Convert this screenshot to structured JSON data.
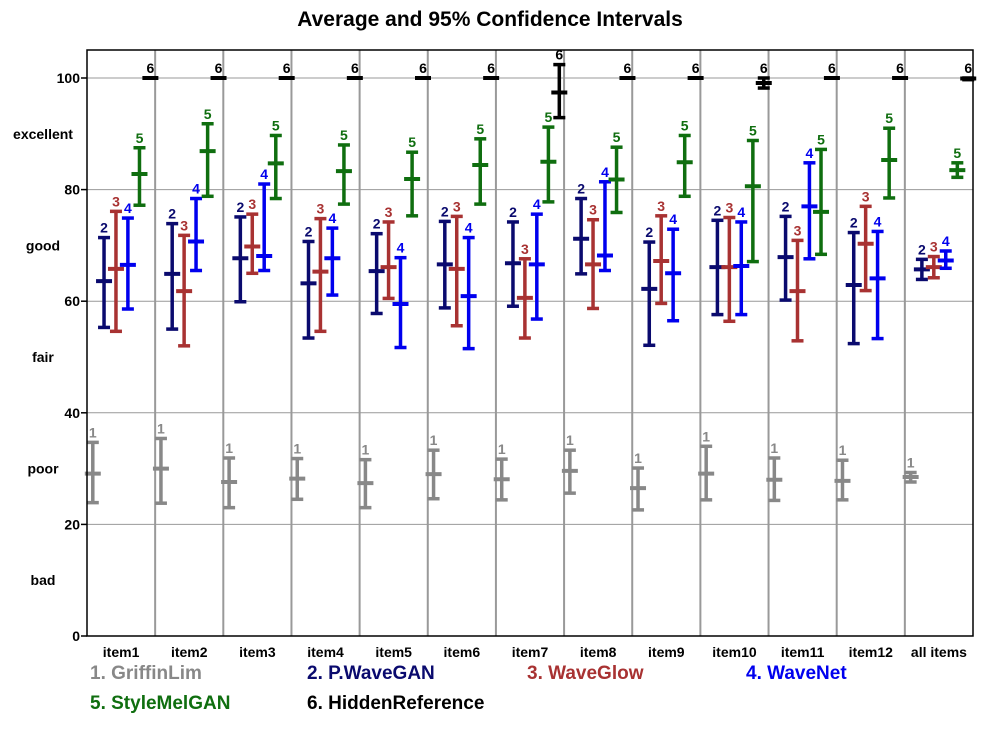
{
  "chart_data": {
    "type": "errorbar",
    "title": "Average and 95% Confidence Intervals",
    "xlabel": "",
    "ylabel": "",
    "ylim": [
      0,
      100
    ],
    "yticks": [
      0,
      20,
      40,
      60,
      80,
      100
    ],
    "quality_labels": [
      {
        "text": "excellent",
        "y": 90
      },
      {
        "text": "good",
        "y": 70
      },
      {
        "text": "fair",
        "y": 50
      },
      {
        "text": "poor",
        "y": 30
      },
      {
        "text": "bad",
        "y": 10
      }
    ],
    "categories": [
      "item1",
      "item2",
      "item3",
      "item4",
      "item5",
      "item6",
      "item7",
      "item8",
      "item9",
      "item10",
      "item11",
      "item12",
      "all items"
    ],
    "grid": true,
    "series": [
      {
        "id": "1",
        "name": "1. GriffinLim",
        "color": "#888888",
        "mean": [
          29.1,
          30.0,
          27.6,
          28.2,
          27.4,
          29.0,
          28.1,
          29.6,
          26.5,
          29.1,
          28.0,
          27.8,
          28.5
        ],
        "lower": [
          23.9,
          23.8,
          23.0,
          24.5,
          23.0,
          24.6,
          24.4,
          25.6,
          22.6,
          24.4,
          24.3,
          24.4,
          27.6
        ],
        "upper": [
          34.7,
          35.4,
          31.9,
          31.8,
          31.6,
          33.3,
          31.7,
          33.3,
          30.1,
          34.0,
          31.9,
          31.5,
          29.3
        ]
      },
      {
        "id": "2",
        "name": "2. P.WaveGAN",
        "color": "#0a0a6e",
        "mean": [
          63.6,
          64.9,
          67.7,
          63.2,
          65.4,
          66.6,
          66.8,
          71.2,
          62.2,
          66.1,
          67.9,
          62.9,
          65.7
        ],
        "lower": [
          55.3,
          55.0,
          59.9,
          53.4,
          57.8,
          58.8,
          59.1,
          64.9,
          52.1,
          57.6,
          60.2,
          52.4,
          63.9
        ],
        "upper": [
          71.4,
          73.9,
          75.1,
          70.7,
          72.1,
          74.3,
          74.2,
          78.4,
          70.6,
          74.5,
          75.2,
          72.3,
          67.5
        ]
      },
      {
        "id": "3",
        "name": "3. WaveGlow",
        "color": "#a83232",
        "mean": [
          65.8,
          61.8,
          69.8,
          65.3,
          66.1,
          65.8,
          60.6,
          66.6,
          67.2,
          66.1,
          61.8,
          70.3,
          66.1
        ],
        "lower": [
          54.6,
          52.0,
          65.0,
          54.6,
          60.5,
          55.6,
          53.4,
          58.7,
          59.6,
          56.4,
          52.9,
          61.9,
          64.2
        ],
        "upper": [
          76.1,
          71.8,
          75.6,
          74.8,
          74.2,
          75.2,
          67.6,
          74.6,
          75.3,
          75.0,
          70.9,
          77.0,
          68.0
        ]
      },
      {
        "id": "4",
        "name": "4. WaveNet",
        "color": "#0000ee",
        "mean": [
          66.5,
          70.7,
          68.1,
          67.7,
          59.5,
          60.9,
          66.6,
          68.2,
          65.0,
          66.3,
          77.0,
          64.1,
          67.3
        ],
        "lower": [
          58.6,
          65.5,
          65.5,
          61.1,
          51.7,
          51.5,
          56.8,
          65.5,
          56.5,
          57.6,
          67.6,
          53.3,
          65.9
        ],
        "upper": [
          74.9,
          78.4,
          81.0,
          73.1,
          67.8,
          71.4,
          75.6,
          81.4,
          72.9,
          74.2,
          84.8,
          72.5,
          69.0
        ]
      },
      {
        "id": "5",
        "name": "5. StyleMelGAN",
        "color": "#0f6e0f",
        "mean": [
          82.8,
          86.9,
          84.7,
          83.3,
          81.9,
          84.4,
          85.0,
          81.8,
          84.9,
          80.6,
          76.0,
          85.3,
          83.5
        ],
        "lower": [
          77.2,
          78.8,
          78.4,
          77.4,
          75.3,
          77.4,
          77.8,
          75.9,
          78.8,
          67.1,
          68.4,
          78.5,
          82.2
        ],
        "upper": [
          87.5,
          91.8,
          89.7,
          88.0,
          86.7,
          89.1,
          91.2,
          87.6,
          89.7,
          88.8,
          87.2,
          91.0,
          84.8
        ]
      },
      {
        "id": "6",
        "name": "6. HiddenReference",
        "color": "#000000",
        "mean": [
          100,
          100,
          100,
          100,
          100,
          100,
          97.4,
          100,
          100,
          99.1,
          100,
          100,
          99.9
        ],
        "lower": [
          100,
          100,
          100,
          100,
          100,
          100,
          92.9,
          100,
          100,
          98.2,
          100,
          100,
          99.7
        ],
        "upper": [
          100,
          100,
          100,
          100,
          100,
          100,
          102.4,
          100,
          100,
          100.0,
          100,
          100,
          100.0
        ]
      }
    ]
  }
}
